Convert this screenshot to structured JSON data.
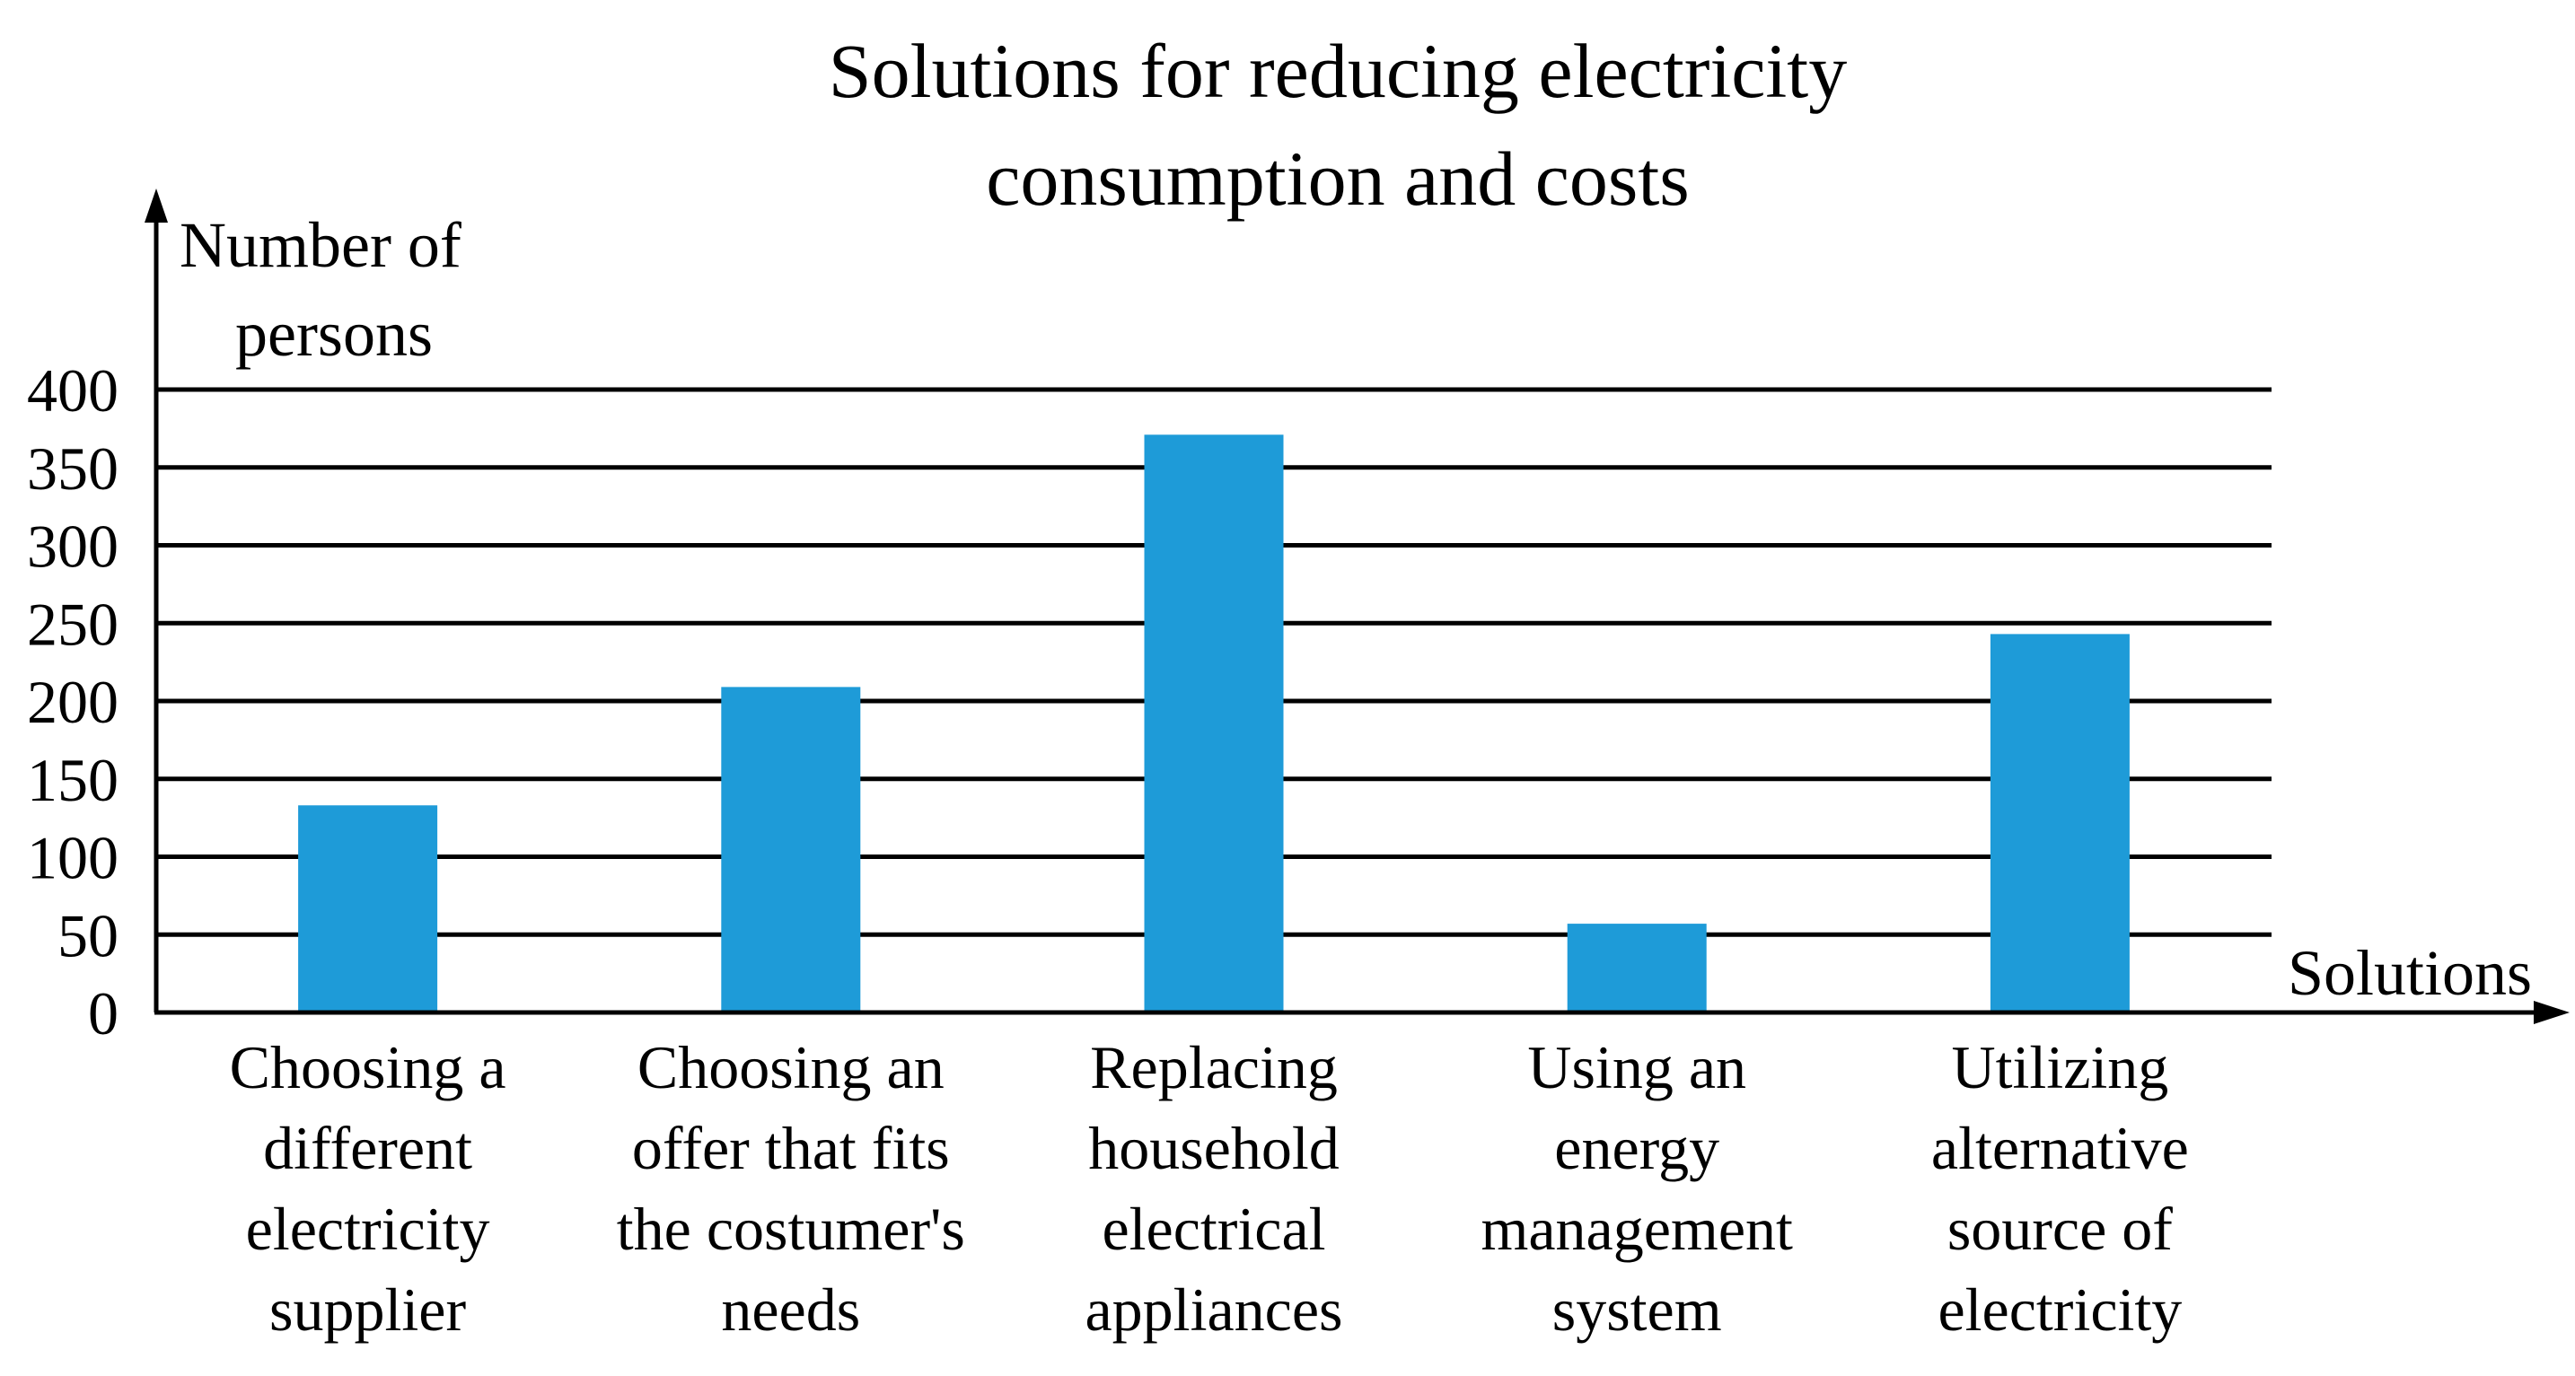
{
  "chart_data": {
    "type": "bar",
    "title_lines": [
      "Solutions for reducing electricity",
      "consumption and costs"
    ],
    "ylabel_lines": [
      "Number of",
      "persons"
    ],
    "xlabel": "Solutions",
    "ylim": [
      0,
      400
    ],
    "yticks": [
      0,
      50,
      100,
      150,
      200,
      250,
      300,
      350,
      400
    ],
    "grid": true,
    "bar_color": "#1e9bd8",
    "categories": [
      [
        "Choosing a",
        "different",
        "electricity",
        "supplier"
      ],
      [
        "Choosing an",
        "offer that fits",
        "the costumer's",
        "needs"
      ],
      [
        "Replacing",
        "household",
        "electrical",
        "appliances"
      ],
      [
        "Using an",
        "energy",
        "management",
        "system"
      ],
      [
        "Utilizing",
        "alternative",
        "source of",
        "electricity"
      ]
    ],
    "values": [
      133,
      209,
      371,
      57,
      243
    ]
  }
}
